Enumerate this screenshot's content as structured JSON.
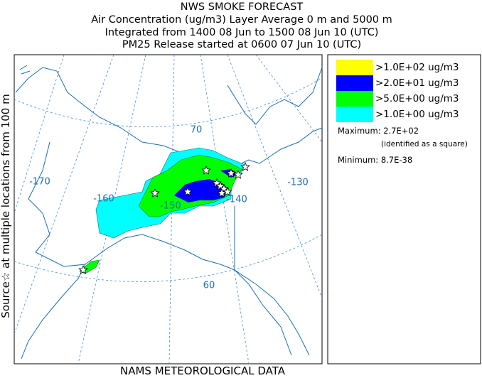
{
  "header": {
    "lines": [
      "NWS SMOKE FORECAST",
      "Air Concentration (ug/m3) Layer Average    0 m and  5000 m",
      "Integrated from 1400 08 Jun to 1500 08 Jun 10 (UTC)",
      "PM25 Release started at 0600 07 Jun 10 (UTC)"
    ]
  },
  "side_label": "Source☆ at multiple locations   from   100 m",
  "footer": "NAMS METEOROLOGICAL DATA",
  "legend": {
    "entries": [
      {
        "label": ">1.0E+02 ug/m3",
        "color": "#ffff00"
      },
      {
        "label": ">2.0E+01 ug/m3",
        "color": "#0000ff"
      },
      {
        "label": ">5.0E+00 ug/m3",
        "color": "#00ff00"
      },
      {
        "label": ">1.0E+00 ug/m3",
        "color": "#00ffff"
      }
    ],
    "maximum": "Maximum: 2.7E+02",
    "maximum_note": "(identified as a square)",
    "minimum": "Minimum: 8.7E-38"
  },
  "map": {
    "labels": [
      "70",
      "-170",
      "-160",
      "-150",
      "-140",
      "-130",
      "60"
    ]
  }
}
